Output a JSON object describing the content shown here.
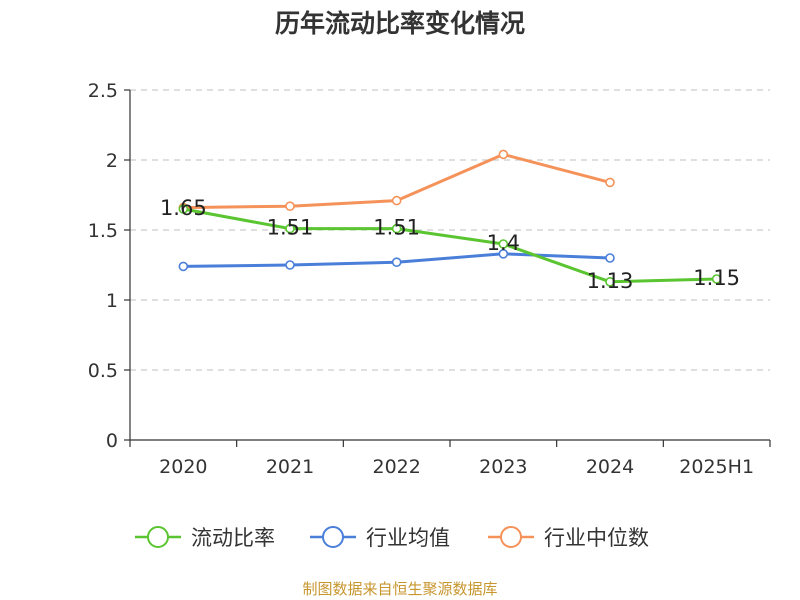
{
  "chart_data": {
    "type": "line",
    "title": "历年流动比率变化情况",
    "categories": [
      "2020",
      "2021",
      "2022",
      "2023",
      "2024",
      "2025H1"
    ],
    "ylim": [
      0,
      2.5
    ],
    "yticks": [
      "0",
      "0.5",
      "1",
      "1.5",
      "2",
      "2.5"
    ],
    "ytick_values": [
      0,
      0.5,
      1,
      1.5,
      2,
      2.5
    ],
    "grid": true,
    "legend_position": "bottom",
    "series": [
      {
        "name": "流动比率",
        "color": "#5ac530",
        "values": [
          1.65,
          1.51,
          1.51,
          1.4,
          1.13,
          1.15
        ],
        "labels": [
          "1.65",
          "1.51",
          "1.51",
          "1.4",
          "1.13",
          "1.15"
        ]
      },
      {
        "name": "行业均值",
        "color": "#4a7fd9",
        "values": [
          1.24,
          1.25,
          1.27,
          1.33,
          1.3,
          null
        ]
      },
      {
        "name": "行业中位数",
        "color": "#f5925a",
        "values": [
          1.66,
          1.67,
          1.71,
          2.04,
          1.84,
          null
        ]
      }
    ]
  },
  "source": "制图数据来自恒生聚源数据库"
}
